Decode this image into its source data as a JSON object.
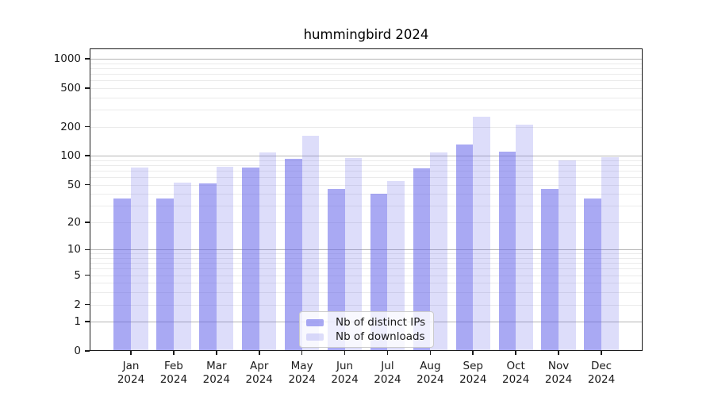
{
  "chart_data": {
    "type": "bar",
    "title": "hummingbird 2024",
    "categories": [
      "Jan 2024",
      "Feb 2024",
      "Mar 2024",
      "Apr 2024",
      "May 2024",
      "Jun 2024",
      "Jul 2024",
      "Aug 2024",
      "Sep 2024",
      "Oct 2024",
      "Nov 2024",
      "Dec 2024"
    ],
    "series": [
      {
        "name": "Nb of distinct IPs",
        "color": "#6363e9",
        "alpha": 0.55,
        "values": [
          36,
          36,
          52,
          76,
          93,
          45,
          40,
          74,
          130,
          110,
          45,
          36
        ]
      },
      {
        "name": "Nb of downloads",
        "color": "#6363e9",
        "alpha": 0.22,
        "values": [
          75,
          53,
          77,
          108,
          160,
          95,
          55,
          108,
          255,
          210,
          90,
          97
        ]
      }
    ],
    "xlabel": "",
    "ylabel": "",
    "yscale": "log1p",
    "yticks": [
      0,
      1,
      2,
      5,
      10,
      20,
      50,
      100,
      200,
      500,
      1000
    ],
    "ymajor_gridlines": [
      1,
      10,
      100,
      1000
    ],
    "ylim": [
      0,
      1280
    ],
    "grid": "horizontal major+minor",
    "legend_position": "lower center inside"
  },
  "colors": {
    "grid_major": "#b5b5b5",
    "grid_minor": "#ebebeb",
    "axis": "#1a1a1a",
    "background": "#ffffff"
  }
}
